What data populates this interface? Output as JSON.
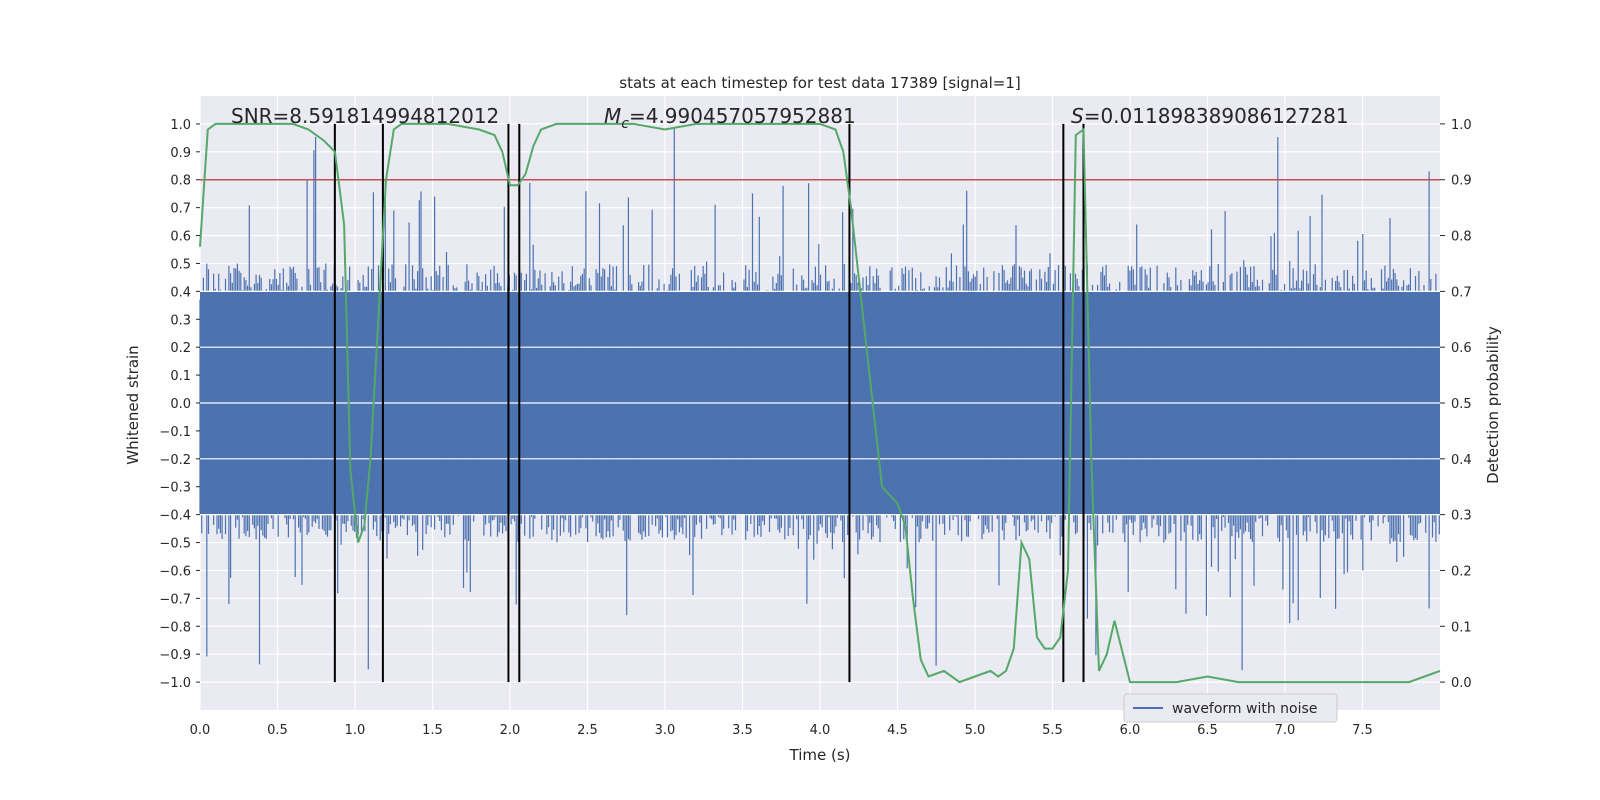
{
  "chart_data": {
    "type": "line",
    "title": "stats at each timestep for test data 17389 [signal=1]",
    "xlabel": "Time (s)",
    "ylabel_left": "Whitened strain",
    "ylabel_right": "Detection probability",
    "xlim": [
      0.0,
      8.0
    ],
    "ylim_left": [
      -1.1,
      1.1
    ],
    "ylim_right": [
      -0.05,
      1.05
    ],
    "xticks": [
      "0.0",
      "0.5",
      "1.0",
      "1.5",
      "2.0",
      "2.5",
      "3.0",
      "3.5",
      "4.0",
      "4.5",
      "5.0",
      "5.5",
      "6.0",
      "6.5",
      "7.0",
      "7.5"
    ],
    "yticks_left": [
      "1.0",
      "0.9",
      "0.8",
      "0.7",
      "0.6",
      "0.5",
      "0.4",
      "0.3",
      "0.2",
      "0.1",
      "0.0",
      "-0.1",
      "-0.2",
      "-0.3",
      "-0.4",
      "-0.5",
      "-0.6",
      "-0.7",
      "-0.8",
      "-0.9",
      "-1.0"
    ],
    "yticks_right": [
      "1.0",
      "0.9",
      "0.8",
      "0.7",
      "0.6",
      "0.5",
      "0.4",
      "0.3",
      "0.2",
      "0.1",
      "0.0"
    ],
    "grid": true,
    "legend": {
      "position": "bottom-right",
      "entries": [
        "waveform with noise"
      ]
    },
    "threshold": {
      "axis": "right",
      "value": 0.9,
      "color": "#c44e52"
    },
    "annotations": {
      "snr": "SNR=8.591814994812012",
      "mc_prefix": "M",
      "mc_sub": "c",
      "mc_value": "=4.990457057952881",
      "s_prefix": "S",
      "s_value": "=0.011898389086127281"
    },
    "vertical_lines": [
      0.87,
      1.18,
      1.99,
      2.06,
      4.19,
      5.57,
      5.7
    ],
    "waveform": {
      "name": "waveform with noise",
      "color": "#4c72b0",
      "noise_band": 0.4,
      "spike_max": 1.0,
      "spike_min": -0.99
    },
    "probability_series": {
      "color": "#55a868",
      "x": [
        0.0,
        0.05,
        0.1,
        0.2,
        0.4,
        0.6,
        0.7,
        0.8,
        0.87,
        0.93,
        0.97,
        1.02,
        1.06,
        1.1,
        1.15,
        1.2,
        1.25,
        1.3,
        1.4,
        1.6,
        1.8,
        1.9,
        1.95,
        2.0,
        2.05,
        2.1,
        2.15,
        2.2,
        2.3,
        2.5,
        2.8,
        3.0,
        3.2,
        3.5,
        3.8,
        4.0,
        4.1,
        4.15,
        4.2,
        4.3,
        4.4,
        4.5,
        4.55,
        4.6,
        4.65,
        4.7,
        4.8,
        4.9,
        5.0,
        5.1,
        5.15,
        5.2,
        5.25,
        5.3,
        5.35,
        5.4,
        5.45,
        5.5,
        5.55,
        5.6,
        5.65,
        5.7,
        5.75,
        5.8,
        5.85,
        5.9,
        6.0,
        6.1,
        6.3,
        6.5,
        6.7,
        7.0,
        7.2,
        7.5,
        7.8,
        7.9,
        8.0
      ],
      "y": [
        0.78,
        0.99,
        1.0,
        1.0,
        1.0,
        1.0,
        0.99,
        0.97,
        0.95,
        0.82,
        0.38,
        0.25,
        0.28,
        0.4,
        0.65,
        0.9,
        0.99,
        1.0,
        1.0,
        1.0,
        0.99,
        0.98,
        0.95,
        0.89,
        0.89,
        0.91,
        0.96,
        0.99,
        1.0,
        1.0,
        1.0,
        0.99,
        1.0,
        1.0,
        1.0,
        1.0,
        0.99,
        0.95,
        0.85,
        0.6,
        0.35,
        0.32,
        0.28,
        0.15,
        0.04,
        0.01,
        0.02,
        0.0,
        0.01,
        0.02,
        0.01,
        0.02,
        0.06,
        0.25,
        0.22,
        0.08,
        0.06,
        0.06,
        0.08,
        0.2,
        0.98,
        0.99,
        0.4,
        0.02,
        0.05,
        0.11,
        0.0,
        0.0,
        0.0,
        0.01,
        0.0,
        0.0,
        0.0,
        0.0,
        0.0,
        0.01,
        0.02
      ]
    }
  }
}
